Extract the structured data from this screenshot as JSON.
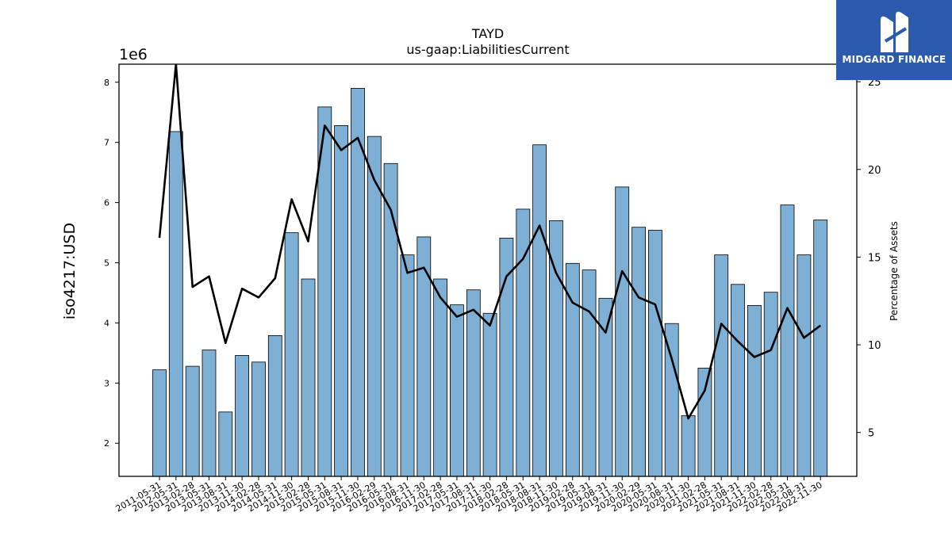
{
  "chart_data": {
    "type": "bar",
    "title": "TAYD",
    "subtitle": "us-gaap:LiabilitiesCurrent",
    "ylabel": "iso4217:USD",
    "y_offset_label": "1e6",
    "y2label": "Percentage of Assets",
    "ylim": [
      1.45,
      8.3
    ],
    "y_ticks": [
      2,
      3,
      4,
      5,
      6,
      7,
      8
    ],
    "y2lim": [
      2.5,
      26.0
    ],
    "y2_ticks": [
      5,
      10,
      15,
      20,
      25
    ],
    "categories": [
      "2011-05-31",
      "2012-05-31",
      "2013-02-28",
      "2013-05-31",
      "2013-08-31",
      "2013-11-30",
      "2014-02-28",
      "2014-05-31",
      "2014-11-30",
      "2015-02-28",
      "2015-05-31",
      "2015-08-31",
      "2015-11-30",
      "2016-02-29",
      "2016-05-31",
      "2016-08-31",
      "2016-11-30",
      "2017-02-28",
      "2017-05-31",
      "2017-08-31",
      "2017-11-30",
      "2018-02-28",
      "2018-05-31",
      "2018-08-31",
      "2018-11-30",
      "2019-02-28",
      "2019-05-31",
      "2019-08-31",
      "2019-11-30",
      "2020-02-29",
      "2020-05-31",
      "2020-08-31",
      "2020-11-30",
      "2021-02-28",
      "2021-05-31",
      "2021-08-31",
      "2021-11-30",
      "2022-02-28",
      "2022-05-31",
      "2022-08-31",
      "2022-11-30"
    ],
    "series": [
      {
        "kind": "bar",
        "values": [
          3.22,
          7.18,
          3.28,
          3.55,
          2.52,
          3.46,
          3.35,
          3.79,
          5.5,
          4.73,
          7.59,
          7.28,
          7.9,
          7.1,
          6.65,
          5.13,
          5.43,
          4.73,
          4.3,
          4.55,
          4.16,
          5.41,
          5.89,
          6.96,
          5.7,
          4.99,
          4.88,
          4.41,
          6.26,
          5.59,
          5.54,
          3.99,
          2.46,
          3.25,
          5.13,
          4.64,
          4.29,
          4.51,
          5.96,
          5.13,
          5.71
        ],
        "color": "#7eb0d5"
      },
      {
        "kind": "line",
        "axis": "right",
        "values": [
          16.1,
          26.0,
          13.3,
          13.9,
          10.1,
          13.2,
          12.7,
          13.8,
          18.3,
          15.9,
          22.5,
          21.1,
          21.8,
          19.4,
          17.7,
          14.1,
          14.4,
          12.7,
          11.6,
          12.0,
          11.1,
          13.9,
          14.9,
          16.8,
          14.1,
          12.4,
          11.9,
          10.7,
          14.2,
          12.7,
          12.3,
          9.2,
          5.8,
          7.4,
          11.2,
          10.2,
          9.3,
          9.7,
          12.1,
          10.4,
          11.1
        ],
        "color": "#000000"
      }
    ]
  },
  "brand": {
    "name": "MIDGARD FINANCE",
    "bg_color": "#2c5aad"
  }
}
